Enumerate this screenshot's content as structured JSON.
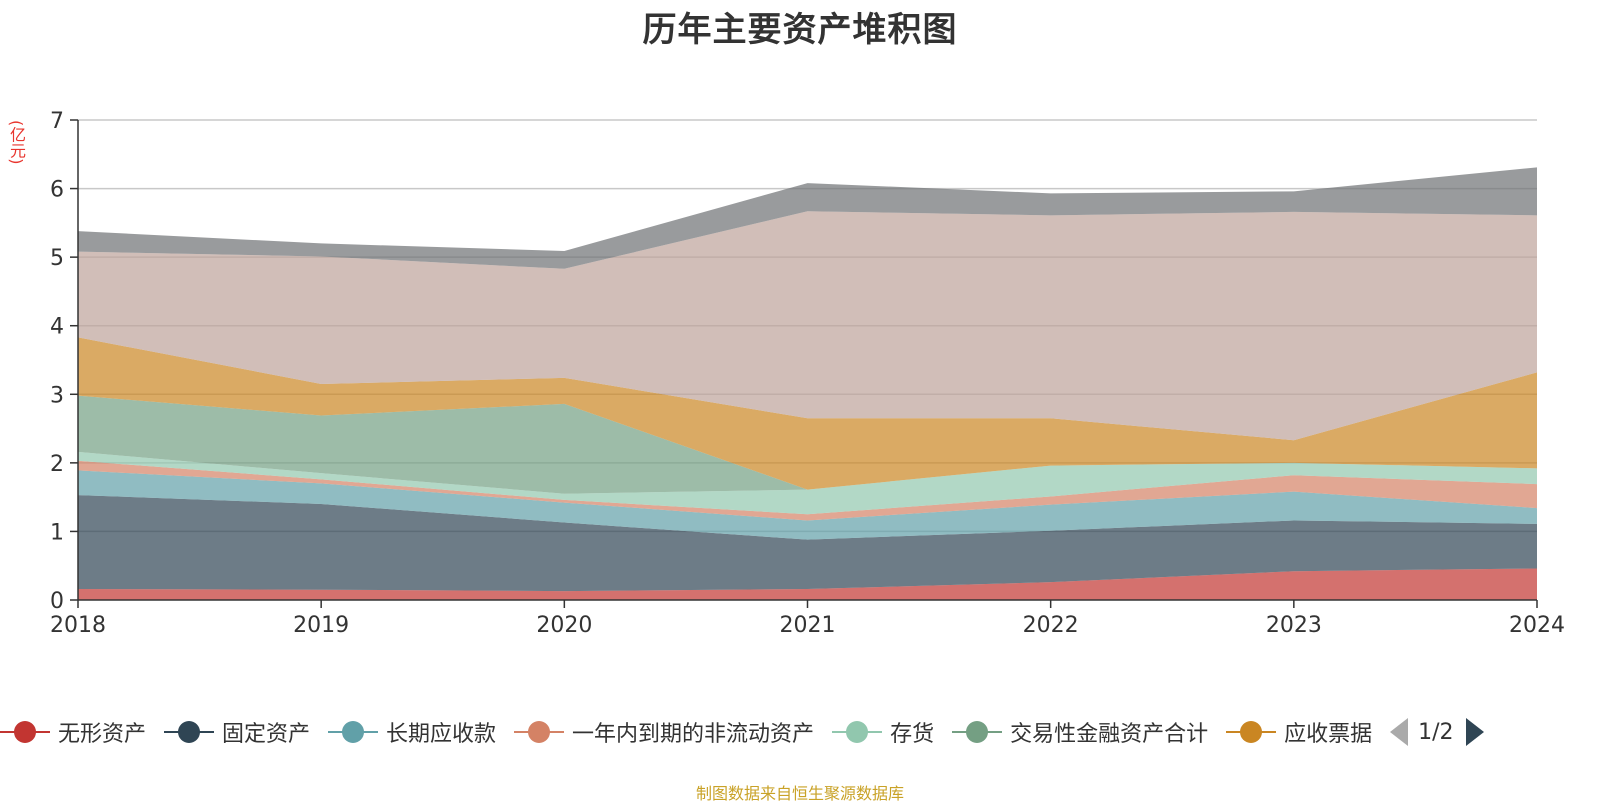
{
  "chart_data": {
    "type": "area",
    "title": "历年主要资产堆积图",
    "unit_label": "(亿元)",
    "x": [
      "2018",
      "2019",
      "2020",
      "2021",
      "2022",
      "2023",
      "2024"
    ],
    "ylim": [
      0,
      7
    ],
    "yticks": [
      "0",
      "1",
      "2",
      "3",
      "4",
      "5",
      "6",
      "7"
    ],
    "grid": true,
    "stacked": true,
    "series": [
      {
        "name": "无形资产",
        "color": "#c23531",
        "values": [
          0.16,
          0.15,
          0.13,
          0.16,
          0.26,
          0.42,
          0.46
        ]
      },
      {
        "name": "固定资产",
        "color": "#2f4554",
        "values": [
          1.37,
          1.25,
          1.0,
          0.72,
          0.75,
          0.74,
          0.65
        ]
      },
      {
        "name": "长期应收款",
        "color": "#61a0a8",
        "values": [
          0.36,
          0.3,
          0.29,
          0.28,
          0.38,
          0.42,
          0.23
        ]
      },
      {
        "name": "一年内到期的非流动资产",
        "color": "#d48265",
        "values": [
          0.14,
          0.06,
          0.04,
          0.09,
          0.12,
          0.24,
          0.35
        ]
      },
      {
        "name": "存货",
        "color": "#91c7ae",
        "values": [
          0.13,
          0.09,
          0.09,
          0.36,
          0.45,
          0.18,
          0.23
        ]
      },
      {
        "name": "交易性金融资产合计",
        "color": "#749f83",
        "values": [
          0.82,
          0.84,
          1.31,
          0.0,
          0.0,
          0.0,
          0.0
        ]
      },
      {
        "name": "应收票据",
        "color": "#ca8622",
        "values": [
          0.85,
          0.46,
          0.38,
          1.04,
          0.69,
          0.33,
          1.4
        ]
      },
      {
        "name": "",
        "color": "#bda29a",
        "values": [
          1.25,
          1.86,
          1.59,
          3.02,
          2.96,
          3.33,
          2.29
        ]
      },
      {
        "name": "",
        "color": "#6e7074",
        "values": [
          0.3,
          0.19,
          0.26,
          0.41,
          0.32,
          0.3,
          0.7
        ]
      }
    ],
    "legend": {
      "position": "bottom",
      "page": "1/2"
    }
  },
  "source_note": "制图数据来自恒生聚源数据库"
}
